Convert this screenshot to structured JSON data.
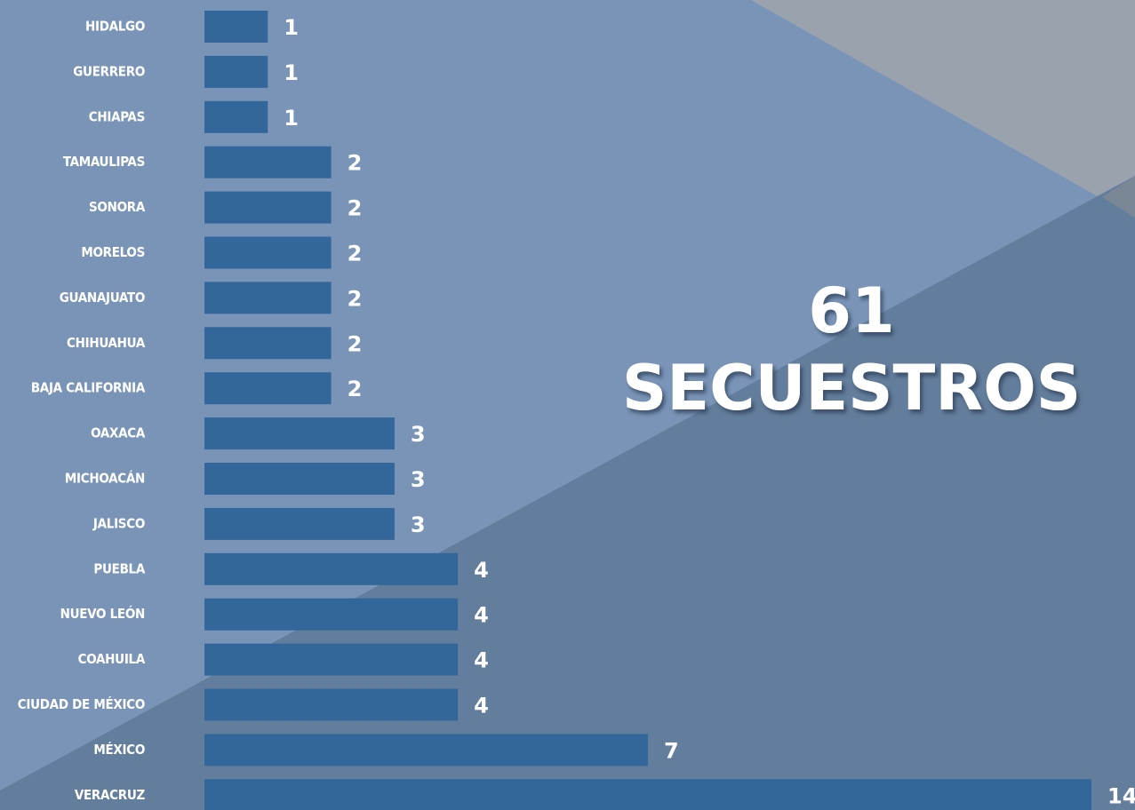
{
  "chart_data": {
    "type": "hbar",
    "annotations": [
      "61",
      "SECUESTROS"
    ],
    "categories": [
      "HIDALGO",
      "GUERRERO",
      "CHIAPAS",
      "TAMAULIPAS",
      "SONORA",
      "MORELOS",
      "GUANAJUATO",
      "CHIHUAHUA",
      "BAJA CALIFORNIA",
      "OAXACA",
      "MICHOACÁN",
      "JALISCO",
      "PUEBLA",
      "NUEVO LEÓN",
      "COAHUILA",
      "CIUDAD DE MÉXICO",
      "MÉXICO",
      "VERACRUZ"
    ],
    "values": [
      1,
      1,
      1,
      2,
      2,
      2,
      2,
      2,
      2,
      3,
      3,
      3,
      4,
      4,
      4,
      4,
      7,
      14
    ],
    "color": "#33669b",
    "xlim": [
      0,
      14
    ]
  }
}
